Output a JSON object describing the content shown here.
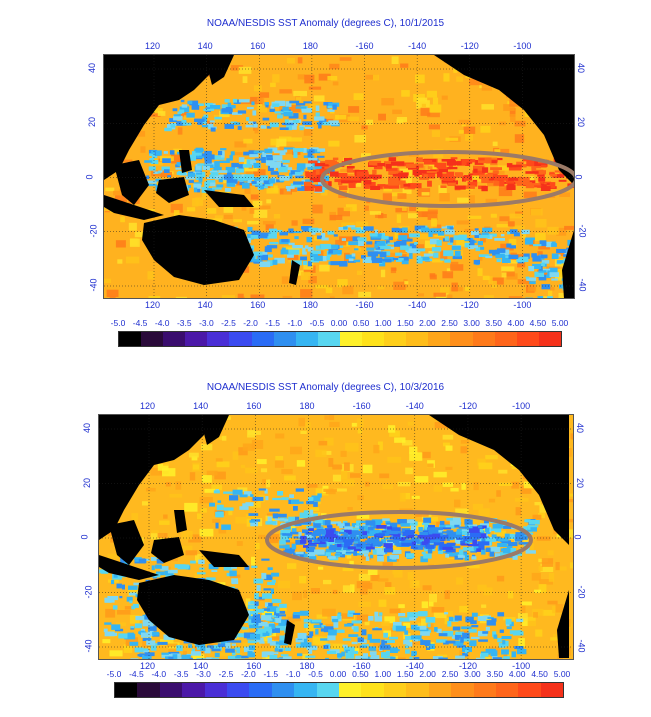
{
  "panels": [
    {
      "title": "NOAA/NESDIS SST Anomaly (degrees C), 10/1/2015",
      "lon_labels": [
        "120",
        "140",
        "160",
        "180",
        "-160",
        "-140",
        "-120",
        "-100"
      ],
      "lat_labels": [
        "40",
        "20",
        "0",
        "-20",
        "-40"
      ],
      "highlight": "El Niño warm anomaly along the equatorial Pacific",
      "theme": "warm"
    },
    {
      "title": "NOAA/NESDIS SST Anomaly (degrees C), 10/3/2016",
      "lon_labels": [
        "120",
        "140",
        "160",
        "180",
        "-160",
        "-140",
        "-120",
        "-100"
      ],
      "lat_labels": [
        "40",
        "20",
        "0",
        "-20",
        "-40"
      ],
      "highlight": "La Niña cool anomaly along the equatorial Pacific",
      "theme": "cool"
    }
  ],
  "colorbar": {
    "labels": [
      "-5.0",
      "-4.5",
      "-4.0",
      "-3.5",
      "-3.0",
      "-2.5",
      "-2.0",
      "-1.5",
      "-1.0",
      "-0.5",
      "0.00",
      "0.50",
      "1.00",
      "1.50",
      "2.00",
      "2.50",
      "3.00",
      "3.50",
      "4.00",
      "4.50",
      "5.00"
    ],
    "colors": [
      "#000000",
      "#2a0a3a",
      "#3a0d6e",
      "#4b18a8",
      "#4a2fd6",
      "#3b4bf0",
      "#2a6cf5",
      "#2f8ff0",
      "#36b5f2",
      "#58d6f0",
      "#fff12a",
      "#ffe21a",
      "#ffcf1a",
      "#ffbd1a",
      "#ffa61a",
      "#ff8f1a",
      "#ff7a1a",
      "#ff651a",
      "#ff4a1a",
      "#f5311a"
    ]
  }
}
